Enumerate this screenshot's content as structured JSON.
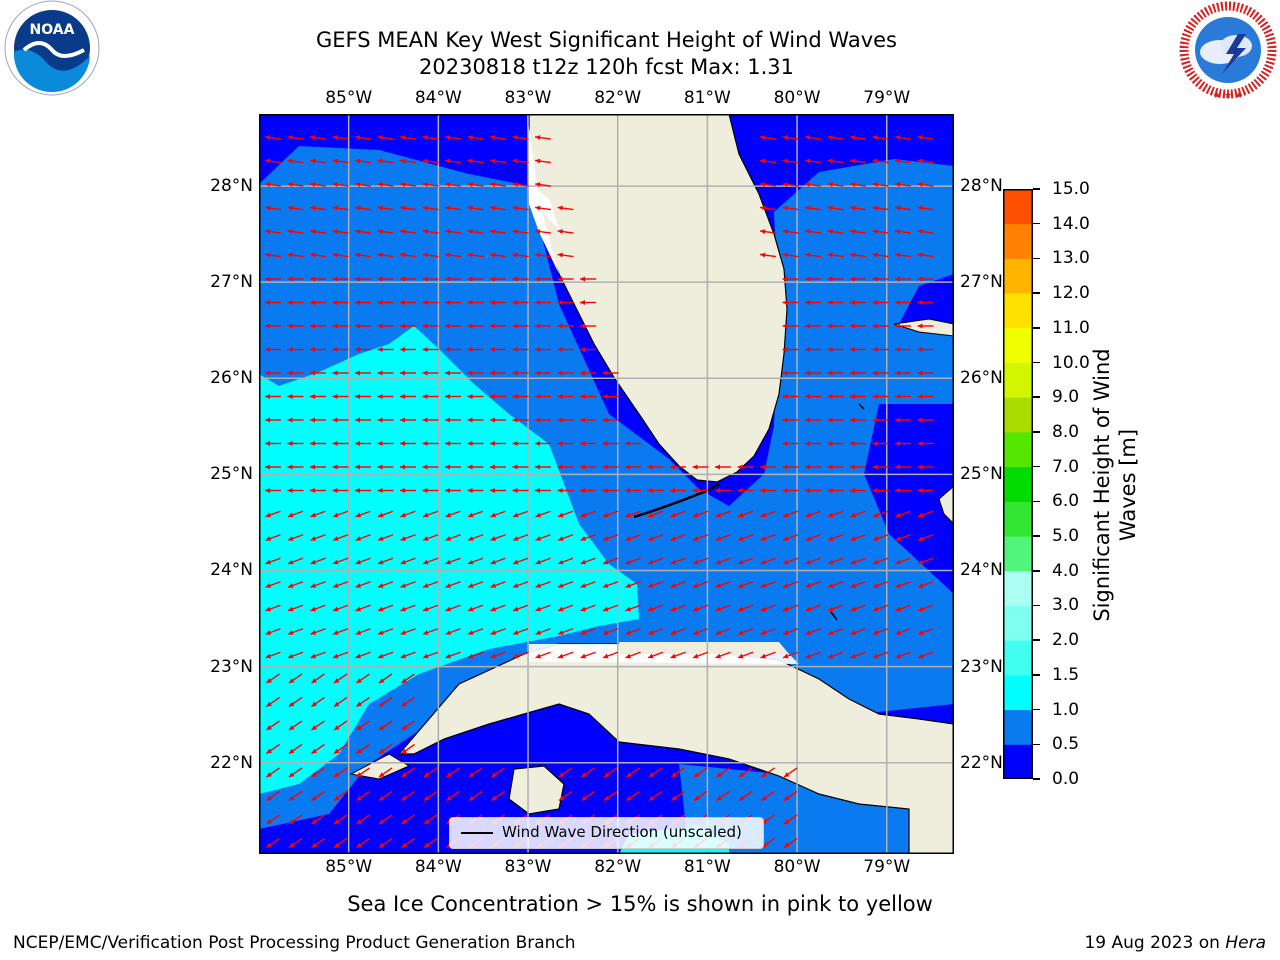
{
  "header": {
    "title_line1": "GEFS MEAN Key West Significant Height of Wind Waves",
    "title_line2": "20230818 t12z 120h fcst   Max: 1.31"
  },
  "logos": {
    "noaa_text": "NOAA",
    "noaa_ring_text": "NATIONAL OCEANIC AND ATMOSPHERIC ADMINISTRATION · U.S. DEPARTMENT OF COMMERCE",
    "nws_ring_text": "NATIONAL WEATHER SERVICE"
  },
  "map": {
    "lon_ticks": [
      "85°W",
      "84°W",
      "83°W",
      "82°W",
      "81°W",
      "80°W",
      "79°W"
    ],
    "lat_ticks": [
      "28°N",
      "27°N",
      "26°N",
      "25°N",
      "24°N",
      "23°N",
      "22°N"
    ],
    "lon_values": [
      -85,
      -84,
      -83,
      -82,
      -81,
      -80,
      -79
    ],
    "lat_values": [
      28,
      27,
      26,
      25,
      24,
      23,
      22
    ],
    "lon_range": [
      -86.0,
      -78.25
    ],
    "lat_range": [
      21.05,
      28.75
    ],
    "legend_label": "Wind Wave Direction (unscaled)",
    "arrow_color": "#ff0000",
    "land_color": "#efeddc",
    "grid": true
  },
  "colorbar": {
    "label_line1": "Significant Height of Wind",
    "label_line2": "Waves [m]",
    "ticks": [
      "0.0",
      "0.5",
      "1.0",
      "1.5",
      "2.0",
      "3.0",
      "4.0",
      "5.0",
      "6.0",
      "7.0",
      "8.0",
      "9.0",
      "10.0",
      "11.0",
      "12.0",
      "13.0",
      "14.0",
      "15.0"
    ],
    "colors": [
      "#0000ff",
      "#0a7af0",
      "#00ffff",
      "#40fff0",
      "#7ffff0",
      "#aafff2",
      "#50f57a",
      "#32e632",
      "#00dc00",
      "#55e600",
      "#aadc00",
      "#d2f500",
      "#f0ff00",
      "#ffe100",
      "#ffb400",
      "#ff8200",
      "#ff5000",
      "#ff2800",
      "#ff0000"
    ]
  },
  "footer": {
    "note": "Sea Ice Concentration > 15% is shown in pink to yellow",
    "left": "NCEP/EMC/Verification Post Processing Product Generation Branch",
    "right_date": "19 Aug 2023 on",
    "right_host": "Hera"
  }
}
